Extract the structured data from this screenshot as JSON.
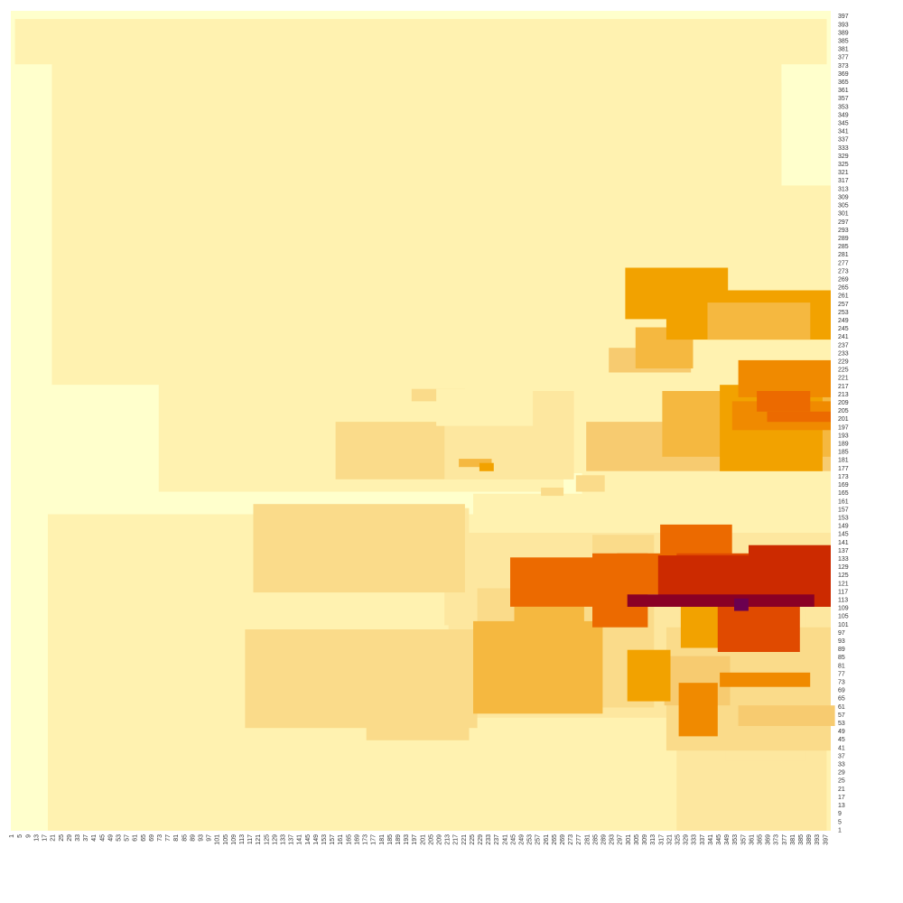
{
  "chart_data": {
    "type": "heatmap",
    "title": "",
    "xlabel": "",
    "ylabel": "",
    "x_range": [
      1,
      399
    ],
    "y_range": [
      1,
      399
    ],
    "x_tick_labels": [
      "1",
      "5",
      "9",
      "13",
      "17",
      "21",
      "25",
      "29",
      "33",
      "37",
      "41",
      "45",
      "49",
      "53",
      "57",
      "61",
      "65",
      "69",
      "73",
      "77",
      "81",
      "85",
      "89",
      "93",
      "97",
      "101",
      "105",
      "109",
      "113",
      "117",
      "121",
      "125",
      "129",
      "133",
      "137",
      "141",
      "145",
      "149",
      "153",
      "157",
      "161",
      "165",
      "169",
      "173",
      "177",
      "181",
      "185",
      "189",
      "193",
      "197",
      "201",
      "205",
      "209",
      "213",
      "217",
      "221",
      "225",
      "229",
      "233",
      "237",
      "241",
      "245",
      "249",
      "253",
      "257",
      "261",
      "265",
      "269",
      "273",
      "277",
      "281",
      "285",
      "289",
      "293",
      "297",
      "301",
      "305",
      "309",
      "313",
      "317",
      "321",
      "325",
      "329",
      "333",
      "337",
      "341",
      "345",
      "349",
      "353",
      "357",
      "361",
      "365",
      "369",
      "373",
      "377",
      "381",
      "385",
      "389",
      "393",
      "397"
    ],
    "y_tick_labels": [
      "1",
      "5",
      "9",
      "13",
      "17",
      "21",
      "25",
      "29",
      "33",
      "37",
      "41",
      "45",
      "49",
      "53",
      "57",
      "61",
      "65",
      "69",
      "73",
      "77",
      "81",
      "85",
      "89",
      "93",
      "97",
      "101",
      "105",
      "109",
      "113",
      "117",
      "121",
      "125",
      "129",
      "133",
      "137",
      "141",
      "145",
      "149",
      "153",
      "157",
      "161",
      "165",
      "169",
      "173",
      "177",
      "181",
      "185",
      "189",
      "193",
      "197",
      "201",
      "205",
      "209",
      "213",
      "217",
      "221",
      "225",
      "229",
      "233",
      "237",
      "241",
      "245",
      "249",
      "253",
      "257",
      "261",
      "265",
      "269",
      "273",
      "277",
      "281",
      "285",
      "289",
      "293",
      "297",
      "301",
      "305",
      "309",
      "313",
      "317",
      "321",
      "325",
      "329",
      "333",
      "337",
      "341",
      "345",
      "349",
      "353",
      "357",
      "361",
      "365",
      "369",
      "373",
      "377",
      "381",
      "385",
      "389",
      "393",
      "397"
    ],
    "legend": "none",
    "grid": false,
    "colormap": {
      "name": "YlOrRd",
      "stops": [
        "#ffffcc",
        "#fff2b0",
        "#fde79f",
        "#fadb8a",
        "#f7cb70",
        "#f5b840",
        "#f2a200",
        "#f08a00",
        "#ec6a00",
        "#e04a00",
        "#cc2a00",
        "#a81000",
        "#8a0025",
        "#6b0050"
      ]
    },
    "value_range": [
      0,
      13
    ],
    "regions": [
      {
        "x": [
          1,
          400
        ],
        "y": [
          1,
          400
        ],
        "value": 0
      },
      {
        "x": [
          3,
          398
        ],
        "y": [
          374,
          396
        ],
        "value": 1
      },
      {
        "x": [
          21,
          376
        ],
        "y": [
          218,
          377
        ],
        "value": 1
      },
      {
        "x": [
          230,
          376
        ],
        "y": [
          313,
          365
        ],
        "value": 1
      },
      {
        "x": [
          312,
          356
        ],
        "y": [
          318,
          362
        ],
        "value": 1
      },
      {
        "x": [
          110,
          218
        ],
        "y": [
          272,
          325
        ],
        "value": 1
      },
      {
        "x": [
          85,
          264
        ],
        "y": [
          221,
          273
        ],
        "value": 1
      },
      {
        "x": [
          110,
          264
        ],
        "y": [
          233,
          273
        ],
        "value": 1
      },
      {
        "x": [
          73,
          270
        ],
        "y": [
          166,
          229
        ],
        "value": 1
      },
      {
        "x": [
          85,
          400
        ],
        "y": [
          175,
          273
        ],
        "value": 1
      },
      {
        "x": [
          155,
          262
        ],
        "y": [
          170,
          227
        ],
        "value": 1
      },
      {
        "x": [
          196,
          250
        ],
        "y": [
          181,
          219
        ],
        "value": 1
      },
      {
        "x": [
          216,
          400
        ],
        "y": [
          175,
          245
        ],
        "value": 1
      },
      {
        "x": [
          271,
          400
        ],
        "y": [
          195,
          315
        ],
        "value": 1
      },
      {
        "x": [
          272,
          335
        ],
        "y": [
          308,
          313
        ],
        "value": 1
      },
      {
        "x": [
          318,
          400
        ],
        "y": [
          175,
          313
        ],
        "value": 1
      },
      {
        "x": [
          286,
          400
        ],
        "y": [
          251,
          290
        ],
        "value": 1
      },
      {
        "x": [
          318,
          370
        ],
        "y": [
          200,
          290
        ],
        "value": 1
      },
      {
        "x": [
          335,
          400
        ],
        "y": [
          200,
          275
        ],
        "value": 1
      },
      {
        "x": [
          19,
          400
        ],
        "y": [
          1,
          155
        ],
        "value": 1
      },
      {
        "x": [
          119,
          230
        ],
        "y": [
          11,
          155
        ],
        "value": 1
      },
      {
        "x": [
          29,
          224
        ],
        "y": [
          37,
          97
        ],
        "value": 1
      },
      {
        "x": [
          110,
          230
        ],
        "y": [
          19,
          104
        ],
        "value": 1
      },
      {
        "x": [
          170,
          222
        ],
        "y": [
          35,
          83
        ],
        "value": 1
      },
      {
        "x": [
          226,
          286
        ],
        "y": [
          61,
          165
        ],
        "value": 1
      },
      {
        "x": [
          250,
          281
        ],
        "y": [
          11,
          55
        ],
        "value": 1
      },
      {
        "x": [
          279,
          400
        ],
        "y": [
          9,
          175
        ],
        "value": 1
      },
      {
        "x": [
          294,
          400
        ],
        "y": [
          31,
          104
        ],
        "value": 1
      },
      {
        "x": [
          321,
          386
        ],
        "y": [
          9,
          109
        ],
        "value": 1
      },
      {
        "x": [
          349,
          394
        ],
        "y": [
          9,
          40
        ],
        "value": 1
      },
      {
        "x": [
          364,
          397
        ],
        "y": [
          9,
          90
        ],
        "value": 1
      },
      {
        "x": [
          180,
          224
        ],
        "y": [
          122,
          158
        ],
        "value": 2
      },
      {
        "x": [
          205,
          222
        ],
        "y": [
          126,
          153
        ],
        "value": 2
      },
      {
        "x": [
          214,
          400
        ],
        "y": [
          56,
          146
        ],
        "value": 2
      },
      {
        "x": [
          241,
          280
        ],
        "y": [
          80,
          146
        ],
        "value": 2
      },
      {
        "x": [
          212,
          244
        ],
        "y": [
          101,
          117
        ],
        "value": 2
      },
      {
        "x": [
          299,
          330
        ],
        "y": [
          92,
          136
        ],
        "value": 2
      },
      {
        "x": [
          304,
          392
        ],
        "y": [
          59,
          126
        ],
        "value": 2
      },
      {
        "x": [
          327,
          370
        ],
        "y": [
          29,
          95
        ],
        "value": 2
      },
      {
        "x": [
          325,
          398
        ],
        "y": [
          1,
          89
        ],
        "value": 2
      },
      {
        "x": [
          349,
          388
        ],
        "y": [
          35,
          125
        ],
        "value": 2
      },
      {
        "x": [
          119,
          222
        ],
        "y": [
          117,
          160
        ],
        "value": 3
      },
      {
        "x": [
          115,
          228
        ],
        "y": [
          51,
          99
        ],
        "value": 3
      },
      {
        "x": [
          174,
          224
        ],
        "y": [
          45,
          77
        ],
        "value": 3
      },
      {
        "x": [
          228,
          290
        ],
        "y": [
          62,
          119
        ],
        "value": 3
      },
      {
        "x": [
          246,
          282
        ],
        "y": [
          90,
          107
        ],
        "value": 3
      },
      {
        "x": [
          284,
          314
        ],
        "y": [
          61,
          145
        ],
        "value": 3
      },
      {
        "x": [
          320,
          400
        ],
        "y": [
          40,
          100
        ],
        "value": 3
      },
      {
        "x": [
          342,
          388
        ],
        "y": [
          46,
          82
        ],
        "value": 3
      },
      {
        "x": [
          319,
          351
        ],
        "y": [
          62,
          86
        ],
        "value": 4
      },
      {
        "x": [
          355,
          402
        ],
        "y": [
          52,
          62
        ],
        "value": 4
      },
      {
        "x": [
          226,
          289
        ],
        "y": [
          58,
          103
        ],
        "value": 5
      },
      {
        "x": [
          246,
          280
        ],
        "y": [
          73,
          110
        ],
        "value": 5
      },
      {
        "x": [
          301,
          322
        ],
        "y": [
          64,
          89
        ],
        "value": 6
      },
      {
        "x": [
          327,
          363
        ],
        "y": [
          90,
          116
        ],
        "value": 6
      },
      {
        "x": [
          326,
          345
        ],
        "y": [
          47,
          73
        ],
        "value": 7
      },
      {
        "x": [
          346,
          390
        ],
        "y": [
          71,
          78
        ],
        "value": 7
      },
      {
        "x": [
          244,
          290
        ],
        "y": [
          110,
          134
        ],
        "value": 8
      },
      {
        "x": [
          284,
          311
        ],
        "y": [
          100,
          136
        ],
        "value": 8
      },
      {
        "x": [
          296,
          350
        ],
        "y": [
          116,
          136
        ],
        "value": 8
      },
      {
        "x": [
          317,
          352
        ],
        "y": [
          130,
          150
        ],
        "value": 8
      },
      {
        "x": [
          325,
          400
        ],
        "y": [
          114,
          136
        ],
        "value": 9
      },
      {
        "x": [
          345,
          385
        ],
        "y": [
          88,
          124
        ],
        "value": 9
      },
      {
        "x": [
          360,
          400
        ],
        "y": [
          115,
          140
        ],
        "value": 10
      },
      {
        "x": [
          316,
          400
        ],
        "y": [
          110,
          135
        ],
        "value": 10
      },
      {
        "x": [
          353,
          366
        ],
        "y": [
          110,
          114
        ],
        "value": 11
      },
      {
        "x": [
          301,
          392
        ],
        "y": [
          110,
          116
        ],
        "value": 12
      },
      {
        "x": [
          353,
          360
        ],
        "y": [
          108,
          114
        ],
        "value": 13
      },
      {
        "x": [
          159,
          218
        ],
        "y": [
          172,
          200
        ],
        "value": 3
      },
      {
        "x": [
          196,
          222
        ],
        "y": [
          210,
          216
        ],
        "value": 3
      },
      {
        "x": [
          212,
          275
        ],
        "y": [
          172,
          215
        ],
        "value": 2
      },
      {
        "x": [
          259,
          270
        ],
        "y": [
          164,
          168
        ],
        "value": 3
      },
      {
        "x": [
          281,
          400
        ],
        "y": [
          176,
          200
        ],
        "value": 4
      },
      {
        "x": [
          318,
          400
        ],
        "y": [
          183,
          215
        ],
        "value": 5
      },
      {
        "x": [
          346,
          396
        ],
        "y": [
          176,
          218
        ],
        "value": 6
      },
      {
        "x": [
          352,
          400
        ],
        "y": [
          196,
          210
        ],
        "value": 7
      },
      {
        "x": [
          369,
          400
        ],
        "y": [
          200,
          205
        ],
        "value": 8
      },
      {
        "x": [
          219,
          235
        ],
        "y": [
          178,
          182
        ],
        "value": 5
      },
      {
        "x": [
          276,
          290
        ],
        "y": [
          166,
          174
        ],
        "value": 3
      },
      {
        "x": [
          208,
          255
        ],
        "y": [
          198,
          216
        ],
        "value": 1
      },
      {
        "x": [
          229,
          236
        ],
        "y": [
          176,
          180
        ],
        "value": 6
      },
      {
        "x": [
          300,
          350
        ],
        "y": [
          250,
          275
        ],
        "value": 6
      },
      {
        "x": [
          292,
          332
        ],
        "y": [
          224,
          236
        ],
        "value": 4
      },
      {
        "x": [
          305,
          333
        ],
        "y": [
          226,
          246
        ],
        "value": 5
      },
      {
        "x": [
          320,
          400
        ],
        "y": [
          240,
          264
        ],
        "value": 6
      },
      {
        "x": [
          340,
          390
        ],
        "y": [
          240,
          258
        ],
        "value": 5
      },
      {
        "x": [
          355,
          400
        ],
        "y": [
          212,
          230
        ],
        "value": 7
      },
      {
        "x": [
          364,
          390
        ],
        "y": [
          205,
          215
        ],
        "value": 8
      }
    ]
  },
  "colors": {
    "background": "#ffffff",
    "tick_text": "#333333"
  }
}
